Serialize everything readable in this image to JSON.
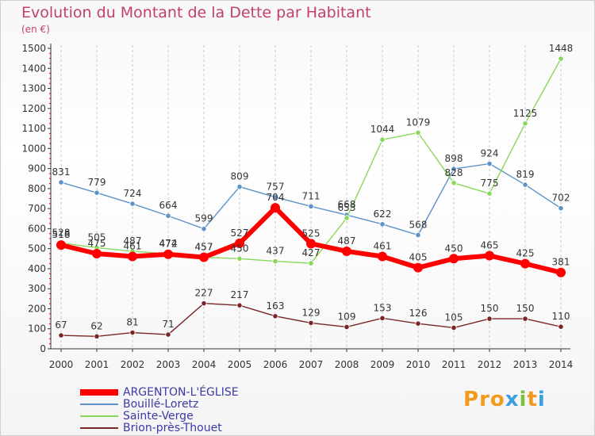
{
  "title": "Evolution du Montant de la Dette par Habitant",
  "unit": "(en €)",
  "logo": "Proxiti",
  "chart_data": {
    "type": "line",
    "title": "Evolution du Montant de la Dette par Habitant",
    "ylabel": "(en €)",
    "xlabel": "",
    "ylim": [
      0,
      1500
    ],
    "yticks": [
      0,
      100,
      200,
      300,
      400,
      500,
      600,
      700,
      800,
      900,
      1000,
      1100,
      1200,
      1300,
      1400,
      1500
    ],
    "x": [
      "2000",
      "2001",
      "2002",
      "2003",
      "2004",
      "2005",
      "2006",
      "2007",
      "2008",
      "2009",
      "2010",
      "2011",
      "2012",
      "2013",
      "2014"
    ],
    "grid": "vertical-dashed",
    "legend_position": "bottom-left",
    "series": [
      {
        "name": "Bouillé-Loretz",
        "color": "#5b93c8",
        "values": [
          831,
          779,
          724,
          664,
          599,
          809,
          757,
          711,
          668,
          622,
          568,
          898,
          924,
          819,
          702
        ]
      },
      {
        "name": "Sainte-Verge",
        "color": "#88d85a",
        "values": [
          528,
          505,
          487,
          474,
          457,
          450,
          437,
          427,
          653,
          1044,
          1079,
          828,
          775,
          1125,
          1448
        ]
      },
      {
        "name": "Brion-près-Thouet",
        "color": "#7a2626",
        "values": [
          67,
          62,
          81,
          71,
          227,
          217,
          163,
          129,
          109,
          153,
          126,
          105,
          150,
          150,
          110
        ]
      },
      {
        "name": "ARGENTON-L'ÉGLISE",
        "color": "#ff0000",
        "values": [
          518,
          475,
          461,
          472,
          457,
          527,
          704,
          525,
          487,
          461,
          405,
          450,
          465,
          425,
          381
        ]
      }
    ]
  }
}
